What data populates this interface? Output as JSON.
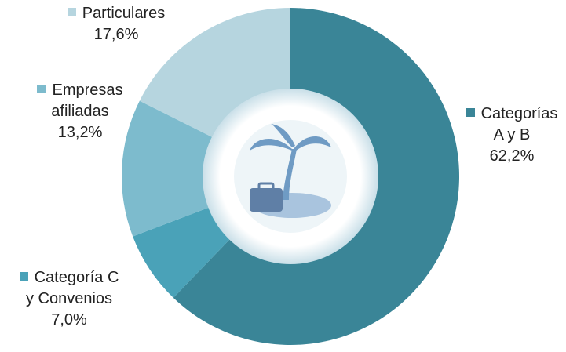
{
  "chart_data": {
    "type": "donut",
    "categories": [
      "Categorías A y B",
      "Categoría C y Convenios",
      "Empresas afiliadas",
      "Particulares"
    ],
    "values": [
      62.2,
      7.0,
      13.2,
      17.6
    ],
    "value_labels": [
      "62,2%",
      "7,0%",
      "13,2%",
      "17,6%"
    ],
    "colors": [
      "#3a8597",
      "#4aa2b8",
      "#7dbbcd",
      "#b6d5df"
    ]
  }
}
